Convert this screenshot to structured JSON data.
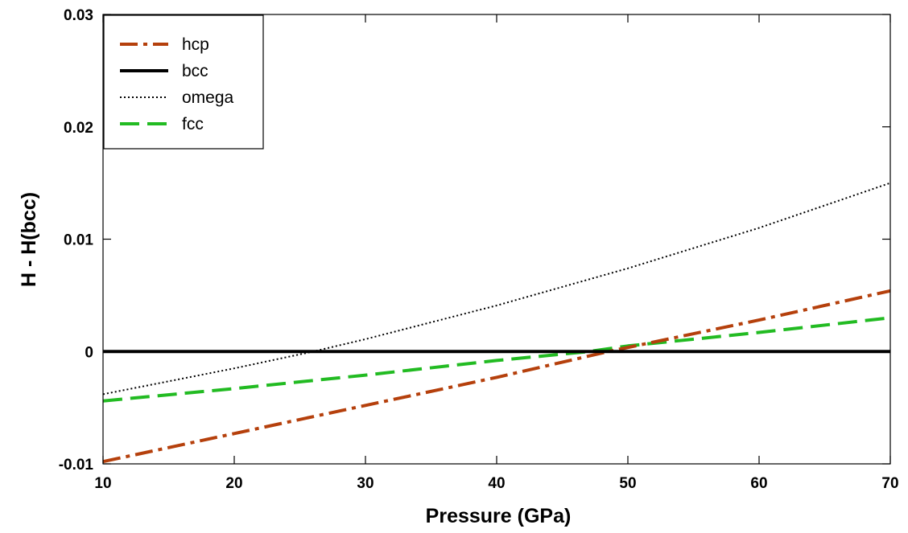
{
  "chart_data": {
    "type": "line",
    "title": "",
    "xlabel": "Pressure (GPa)",
    "ylabel": "H - H(bcc)",
    "xlim": [
      10,
      70
    ],
    "ylim": [
      -0.01,
      0.03
    ],
    "xticks": [
      10,
      20,
      30,
      40,
      50,
      60,
      70
    ],
    "xtick_labels": [
      "10",
      "20",
      "30",
      "40",
      "50",
      "60",
      "70"
    ],
    "yticks": [
      -0.01,
      0,
      0.01,
      0.02,
      0.03
    ],
    "ytick_labels": [
      "-0.01",
      "0",
      "0.01",
      "0.02",
      "0.03"
    ],
    "grid": false,
    "legend_position": "top-left",
    "series": [
      {
        "name": "hcp",
        "color": "#b5400c",
        "style": "dash-dot",
        "x": [
          10,
          20,
          30,
          40,
          48.5,
          60,
          70
        ],
        "y": [
          -0.0098,
          -0.0073,
          -0.0048,
          -0.0023,
          0.0,
          0.0028,
          0.0054
        ]
      },
      {
        "name": "bcc",
        "color": "#000000",
        "style": "solid",
        "x": [
          10,
          70
        ],
        "y": [
          0,
          0
        ]
      },
      {
        "name": "omega",
        "color": "#000000",
        "style": "dotted",
        "x": [
          10,
          20,
          26,
          30,
          40,
          50,
          60,
          70
        ],
        "y": [
          -0.0038,
          -0.0015,
          0.0,
          0.0011,
          0.0041,
          0.0074,
          0.011,
          0.015
        ]
      },
      {
        "name": "fcc",
        "color": "#22bb22",
        "style": "dashed",
        "x": [
          10,
          20,
          30,
          40,
          47,
          50,
          60,
          70
        ],
        "y": [
          -0.0044,
          -0.0033,
          -0.0021,
          -0.0008,
          0.0,
          0.0005,
          0.0017,
          0.003
        ]
      }
    ]
  }
}
